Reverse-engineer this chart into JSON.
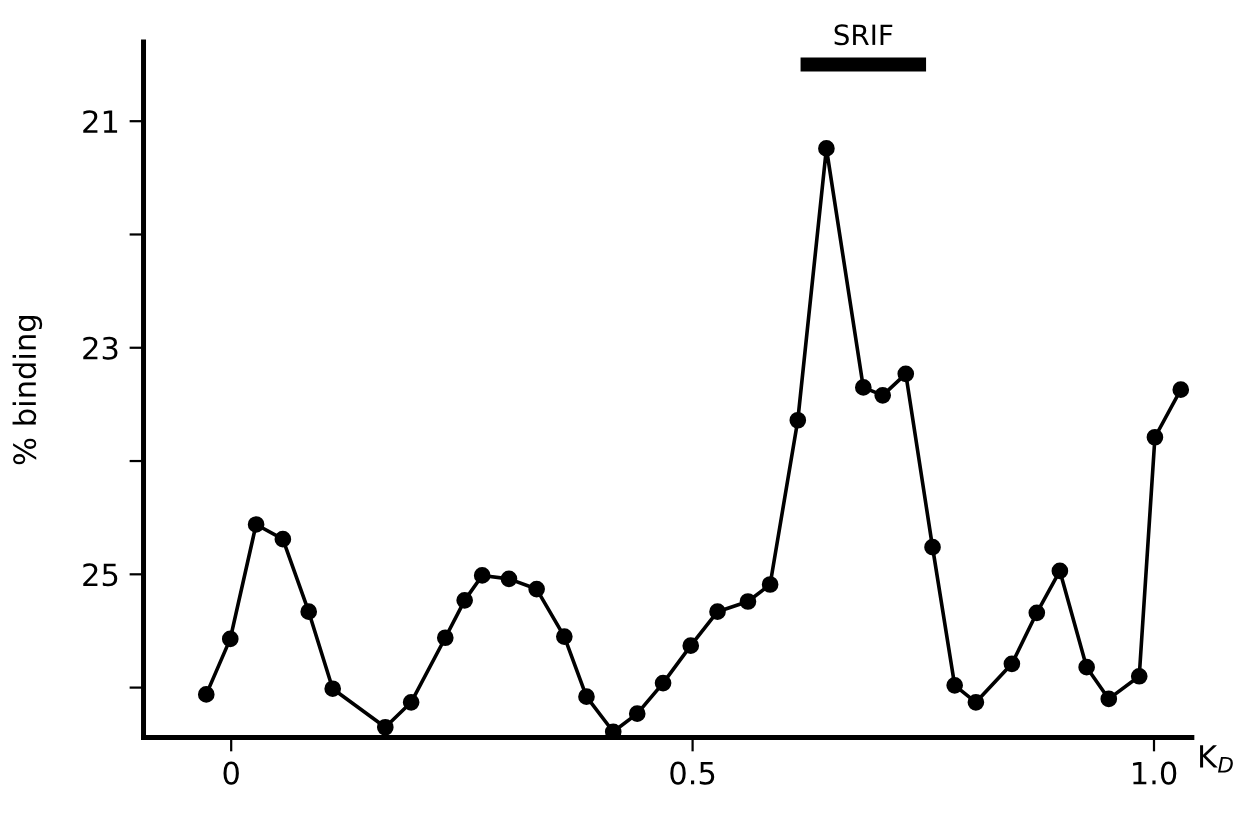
{
  "chart_data": {
    "type": "line",
    "ylabel": "% binding",
    "xlabel": "K$_{D}$",
    "x": [
      -0.027,
      -0.001,
      0.027,
      0.056,
      0.084,
      0.11,
      0.167,
      0.195,
      0.232,
      0.253,
      0.272,
      0.301,
      0.331,
      0.361,
      0.385,
      0.414,
      0.44,
      0.468,
      0.498,
      0.527,
      0.56,
      0.584,
      0.614,
      0.645,
      0.685,
      0.706,
      0.731,
      0.76,
      0.784,
      0.807,
      0.846,
      0.873,
      0.898,
      0.927,
      0.951,
      0.984,
      1.001,
      1.029
    ],
    "series": [
      {
        "color": "#000000",
        "values": [
          26.06,
          25.57,
          24.56,
          24.69,
          25.33,
          26.01,
          26.35,
          26.13,
          25.56,
          25.23,
          25.01,
          25.04,
          25.13,
          25.55,
          26.08,
          26.39,
          26.23,
          25.96,
          25.63,
          25.33,
          25.24,
          25.09,
          23.64,
          21.24,
          23.35,
          23.42,
          23.23,
          24.76,
          25.98,
          26.13,
          25.79,
          25.34,
          24.97,
          25.82,
          26.1,
          25.9,
          23.79,
          23.37
        ]
      },
      {
        "type": "line",
        "x": [
          0.617,
          0.753
        ],
        "values": [
          20.5,
          20.5
        ],
        "color": "#000000",
        "marker": "none"
      }
    ],
    "xlim": [
      -0.095,
      1.041
    ],
    "ylim": [
      26.44,
      20.3
    ],
    "xticks": [
      0,
      {
        "value": 0.5,
        "label": "0.5"
      },
      {
        "value": 1.0,
        "label": "1.0"
      }
    ],
    "yticks": [
      21,
      {
        "value": 22,
        "label": null
      },
      23,
      {
        "value": 24,
        "label": null
      },
      25,
      {
        "value": 26,
        "label": null
      }
    ],
    "annotations": [
      {
        "text": "SRIF",
        "x": 0.685,
        "y": 20.5
      }
    ],
    "grid": false,
    "legend": false,
    "marker": "circle",
    "line_style": "solid"
  }
}
